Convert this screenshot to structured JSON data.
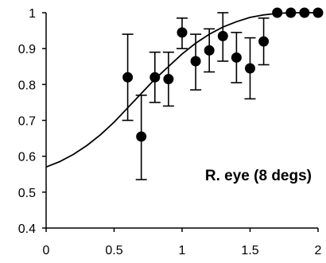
{
  "chart_data": {
    "type": "scatter",
    "title": "",
    "xlabel": "",
    "ylabel": "",
    "annotation": "R. eye (8 degs)",
    "xlim": [
      0,
      2
    ],
    "ylim": [
      0.4,
      1
    ],
    "x_ticks": [
      0,
      0.5,
      1,
      1.5,
      2
    ],
    "x_tick_labels": [
      "0",
      "0.5",
      "1",
      "1.5",
      "2"
    ],
    "y_ticks": [
      0.4,
      0.5,
      0.6,
      0.7,
      0.8,
      0.9,
      1
    ],
    "y_tick_labels": [
      "0.4",
      "0.5",
      "0.6",
      "0.7",
      "0.8",
      "0.9",
      "1"
    ],
    "grid": false,
    "colors": {
      "marker": "#000000",
      "curve": "#000000",
      "axis": "#000000"
    },
    "series": [
      {
        "points": [
          {
            "x": 0.6,
            "y": 0.82,
            "ylow": 0.7,
            "yhigh": 0.94
          },
          {
            "x": 0.7,
            "y": 0.655,
            "ylow": 0.535,
            "yhigh": 0.77
          },
          {
            "x": 0.8,
            "y": 0.82,
            "ylow": 0.75,
            "yhigh": 0.89
          },
          {
            "x": 0.9,
            "y": 0.815,
            "ylow": 0.74,
            "yhigh": 0.89
          },
          {
            "x": 1.0,
            "y": 0.945,
            "ylow": 0.9,
            "yhigh": 0.985
          },
          {
            "x": 1.1,
            "y": 0.865,
            "ylow": 0.785,
            "yhigh": 0.94
          },
          {
            "x": 1.2,
            "y": 0.895,
            "ylow": 0.835,
            "yhigh": 0.955
          },
          {
            "x": 1.3,
            "y": 0.935,
            "ylow": 0.865,
            "yhigh": 1.0
          },
          {
            "x": 1.4,
            "y": 0.875,
            "ylow": 0.805,
            "yhigh": 0.945
          },
          {
            "x": 1.5,
            "y": 0.845,
            "ylow": 0.76,
            "yhigh": 0.93
          },
          {
            "x": 1.6,
            "y": 0.92,
            "ylow": 0.855,
            "yhigh": 0.985
          },
          {
            "x": 1.7,
            "y": 1.0
          },
          {
            "x": 1.8,
            "y": 1.0
          },
          {
            "x": 1.9,
            "y": 1.0
          },
          {
            "x": 2.0,
            "y": 1.0
          }
        ]
      }
    ],
    "fit_curve": {
      "x": [
        0,
        0.1,
        0.2,
        0.3,
        0.4,
        0.5,
        0.6,
        0.7,
        0.8,
        0.9,
        1.0,
        1.1,
        1.2,
        1.3,
        1.4,
        1.5,
        1.6,
        1.7,
        1.8,
        1.9,
        2.0
      ],
      "y": [
        0.57,
        0.585,
        0.605,
        0.63,
        0.66,
        0.695,
        0.735,
        0.775,
        0.815,
        0.85,
        0.885,
        0.915,
        0.94,
        0.96,
        0.975,
        0.987,
        0.994,
        0.998,
        1.0,
        1.0,
        1.0
      ]
    }
  }
}
